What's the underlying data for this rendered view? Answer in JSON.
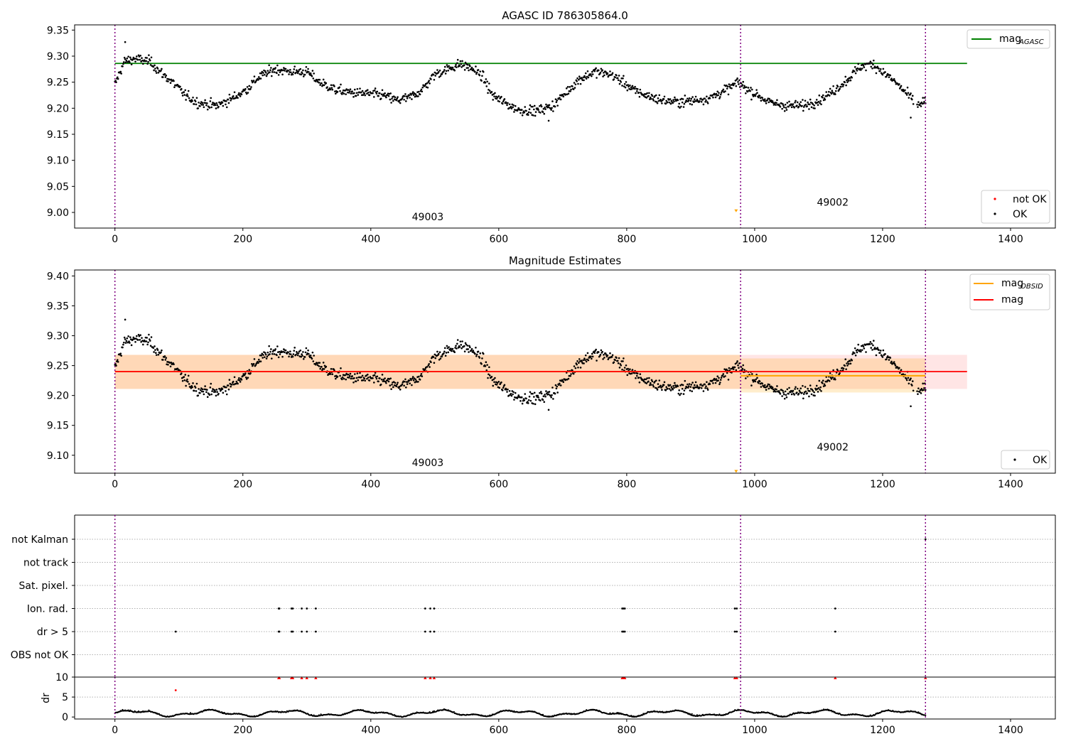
{
  "figure": {
    "x_ticks": [
      0,
      200,
      400,
      600,
      800,
      1000,
      1200,
      1400
    ]
  },
  "chart_data": [
    {
      "type": "scatter",
      "title": "AGASC ID 786305864.0",
      "xlim": [
        -63,
        1470
      ],
      "ylim": [
        8.97,
        9.36
      ],
      "y_ticks": [
        "9.00",
        "9.05",
        "9.10",
        "9.15",
        "9.20",
        "9.25",
        "9.30",
        "9.35"
      ],
      "obsid_boundaries": [
        0,
        978,
        1267
      ],
      "obsid_labels": [
        {
          "text": "49003",
          "x": 489,
          "y": 8.985
        },
        {
          "text": "49002",
          "x": 1122,
          "y": 9.013
        }
      ],
      "mag_agasc": 9.286,
      "legend_line": {
        "label": "mag",
        "sub": "AGASC",
        "color": "#008000"
      },
      "legend_points": [
        {
          "label": "not OK",
          "color": "#ff0000"
        },
        {
          "label": "OK",
          "color": "#000000"
        }
      ],
      "outlier": {
        "x": 971,
        "y": 9.003,
        "color": "#ffa500"
      }
    },
    {
      "type": "scatter",
      "title": "Magnitude Estimates",
      "xlim": [
        -63,
        1470
      ],
      "ylim": [
        9.07,
        9.41
      ],
      "y_ticks": [
        "9.10",
        "9.15",
        "9.20",
        "9.25",
        "9.30",
        "9.35",
        "9.40"
      ],
      "obsid_boundaries": [
        0,
        978,
        1267
      ],
      "obsid_labels": [
        {
          "text": "49003",
          "x": 489,
          "y": 9.082
        },
        {
          "text": "49002",
          "x": 1122,
          "y": 9.108
        }
      ],
      "mag": 9.24,
      "mag_band": [
        9.211,
        9.268
      ],
      "mag_obsid": [
        {
          "x0": 0,
          "x1": 978,
          "value": 9.24,
          "band": [
            9.211,
            9.268
          ]
        },
        {
          "x0": 978,
          "x1": 1267,
          "value": 9.233,
          "band": [
            9.205,
            9.262
          ]
        }
      ],
      "legend_lines": [
        {
          "label": "mag",
          "sub": "OBSID",
          "color": "#ffa500"
        },
        {
          "label": "mag",
          "sub": "",
          "color": "#ff0000"
        }
      ],
      "legend_points": [
        {
          "label": "OK",
          "color": "#000000"
        }
      ],
      "outlier": {
        "x": 971,
        "y": 9.073,
        "color": "#ffa500"
      }
    },
    {
      "type": "scatter",
      "title": "",
      "categories": [
        "not Kalman",
        "not track",
        "Sat. pixel.",
        "Ion. rad.",
        "dr > 5",
        "OBS not OK"
      ],
      "flags": {
        "Ion. rad.": [
          256,
          257,
          276,
          278,
          292,
          300,
          314,
          485,
          493,
          499,
          793,
          795,
          797,
          969,
          972,
          1126
        ],
        "dr > 5": [
          95,
          256,
          257,
          276,
          278,
          292,
          300,
          314,
          485,
          493,
          499,
          793,
          795,
          797,
          969,
          972,
          1126
        ]
      },
      "obsid_boundaries": [
        0,
        978,
        1267
      ]
    },
    {
      "type": "line",
      "title": "",
      "ylabel": "dr",
      "ylim": [
        -0.5,
        10
      ],
      "y_ticks": [
        "0",
        "5",
        "10"
      ],
      "clipped_points": [
        256,
        257,
        276,
        278,
        292,
        300,
        314,
        485,
        493,
        499,
        793,
        795,
        797,
        969,
        972,
        1126,
        1267
      ],
      "dr_peak": {
        "x": 95,
        "y": 6.7
      },
      "obsid_boundaries": [
        0,
        978,
        1267
      ]
    }
  ]
}
